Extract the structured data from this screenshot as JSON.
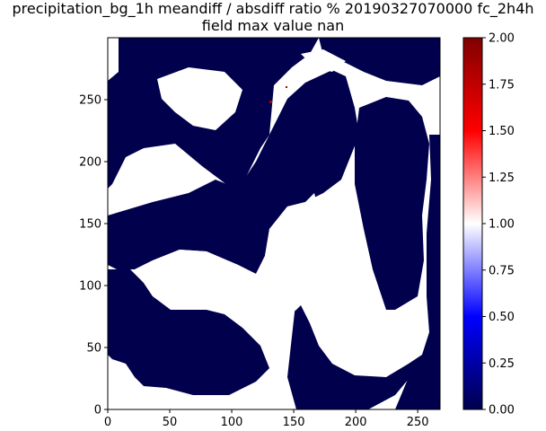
{
  "chart_data": {
    "type": "heatmap",
    "title_line1": "precipitation_bg_1h meandiff / absdiff ratio % 20190327070000 fc_2h4h",
    "title_line2": "field max value nan",
    "xlabel": "",
    "ylabel": "",
    "xlim": [
      0,
      268
    ],
    "ylim": [
      0,
      300
    ],
    "x_ticks": [
      0,
      50,
      100,
      150,
      200,
      250
    ],
    "y_ticks": [
      0,
      50,
      100,
      150,
      200,
      250
    ],
    "colorbar": {
      "vmin": 0.0,
      "vmax": 2.0,
      "cmap": "seismic",
      "ticks": [
        "0.00",
        "0.25",
        "0.50",
        "0.75",
        "1.00",
        "1.25",
        "1.50",
        "1.75",
        "2.00"
      ]
    },
    "colors": {
      "low": "#00004c",
      "high": "#800000",
      "nan": "#ffffff"
    },
    "field_note": "",
    "grid": false
  }
}
